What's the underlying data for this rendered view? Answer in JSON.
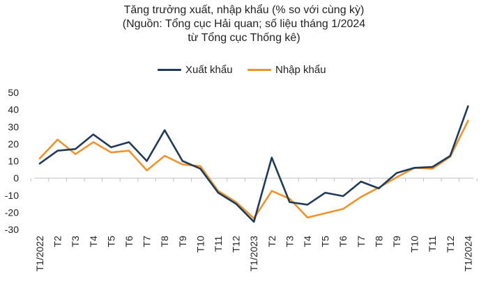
{
  "chart_data": {
    "type": "line",
    "title_lines": [
      "Tăng trưởng xuất, nhập khẩu (% so với cùng kỳ)",
      "(Nguồn: Tổng cục Hải quan; số liệu tháng 1/2024",
      "từ Tổng cục Thống kê)"
    ],
    "categories": [
      "T1/2022",
      "T2",
      "T3",
      "T4",
      "T5",
      "T6",
      "T7",
      "T8",
      "T9",
      "T10",
      "T11",
      "T12",
      "T1/2023",
      "T2",
      "T3",
      "T4",
      "T5",
      "T6",
      "T7",
      "T8",
      "T9",
      "T10",
      "T11",
      "T12",
      "T1/2024"
    ],
    "series": [
      {
        "name": "Xuất khẩu",
        "color": "#1f3a5a",
        "values": [
          8.5,
          16,
          17,
          25.5,
          18,
          21,
          10,
          28,
          10,
          5.5,
          -8.5,
          -15,
          -25.5,
          12,
          -14,
          -15.5,
          -8.5,
          -10.5,
          -2,
          -6,
          3,
          6,
          6.5,
          13,
          42
        ]
      },
      {
        "name": "Nhập khẩu",
        "color": "#f0932b",
        "values": [
          11.5,
          22.5,
          14,
          21,
          15,
          16,
          4.5,
          13,
          8,
          7,
          -7.5,
          -14,
          -23.5,
          -7.5,
          -12,
          -23,
          -20.5,
          -18,
          -11,
          -5.5,
          0.5,
          6,
          5.5,
          12.5,
          33.5
        ]
      }
    ],
    "yticks": [
      -30,
      -20,
      -10,
      0,
      10,
      20,
      30,
      40,
      50
    ],
    "ylim": [
      -30,
      50
    ],
    "grid": false,
    "legend_position": "top-center"
  }
}
